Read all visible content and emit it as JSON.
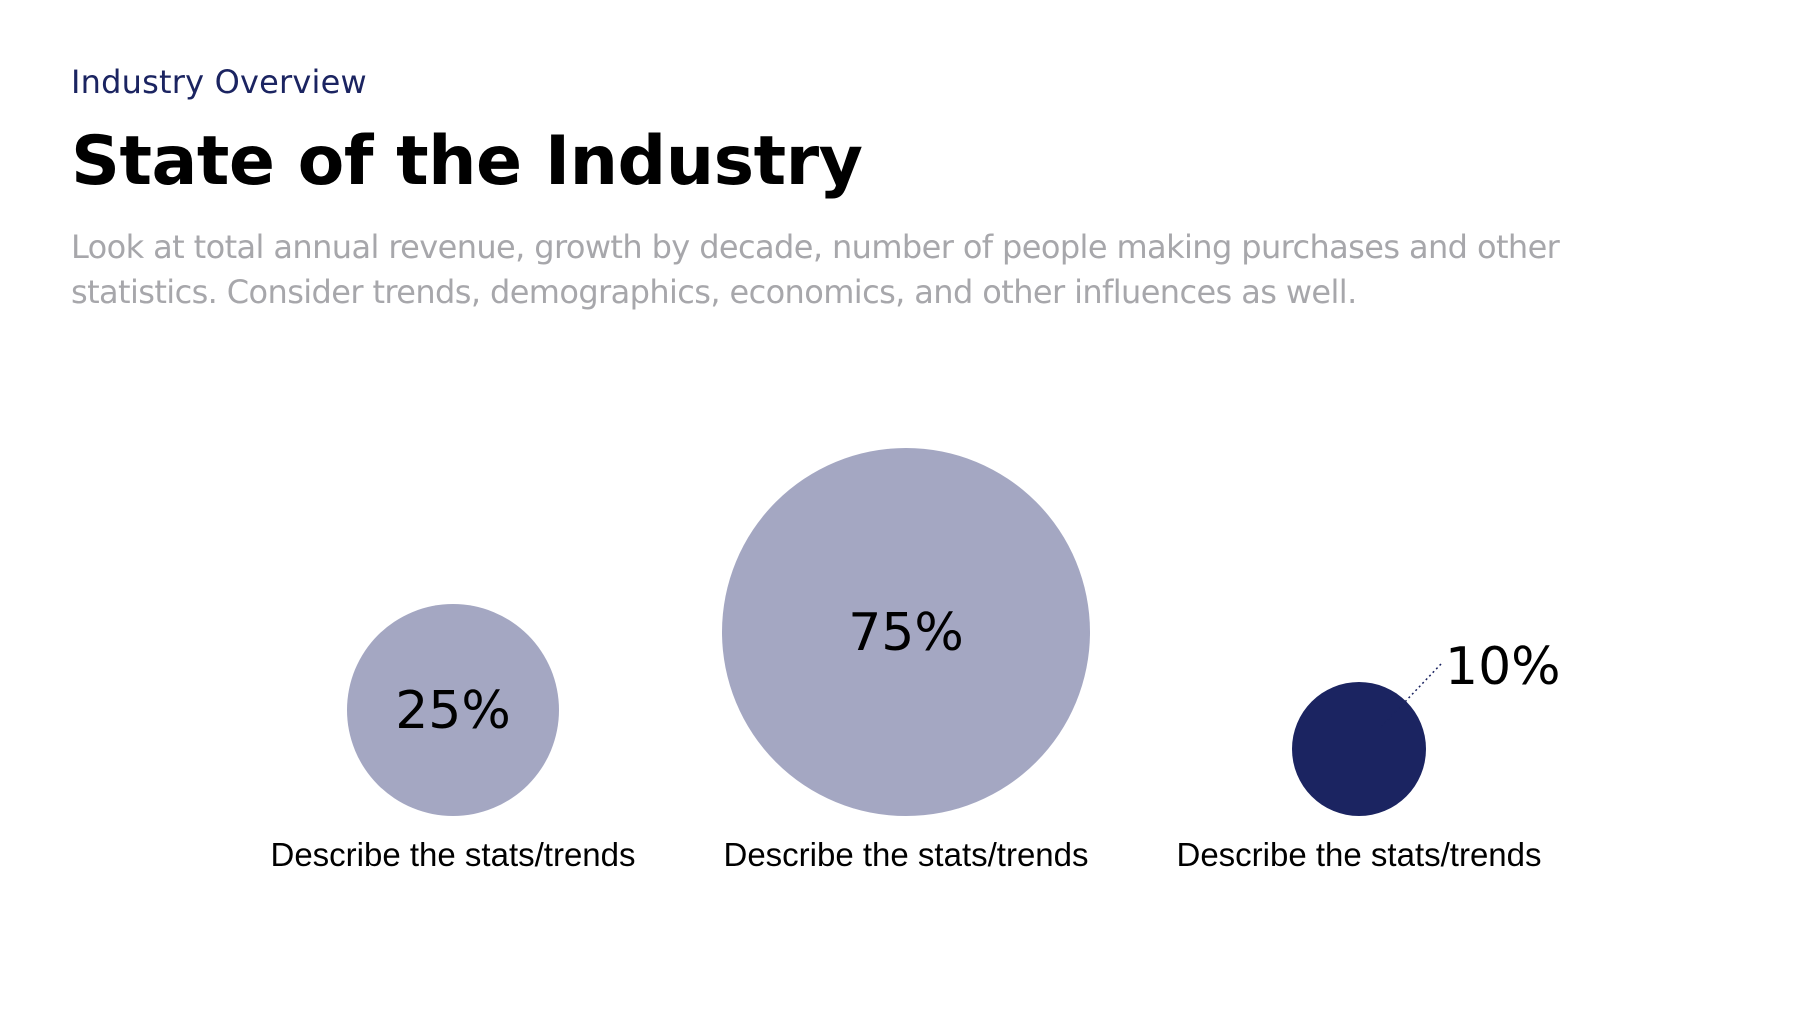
{
  "slide": {
    "eyebrow": "Industry Overview",
    "title": "State of the Industry",
    "subtitle_lines": [
      "Look at total annual revenue, growth by decade, number of people making purchases and other",
      "statistics. Consider trends, demographics, economics, and other influences as well."
    ]
  },
  "colors": {
    "eyebrow": "#1b2461",
    "light_bubble": "#a4a7c2",
    "dark_bubble": "#1b2461",
    "subtitle": "#a7a7ab"
  },
  "chart_data": {
    "type": "bubble",
    "series": [
      {
        "label": "25%",
        "value": 25,
        "caption": "Describe the stats/trends",
        "color": "#a4a7c2",
        "label_position": "inside"
      },
      {
        "label": "75%",
        "value": 75,
        "caption": "Describe the stats/trends",
        "color": "#a4a7c2",
        "label_position": "inside"
      },
      {
        "label": "10%",
        "value": 10,
        "caption": "Describe the stats/trends",
        "color": "#1b2461",
        "label_position": "outside-top-right"
      }
    ]
  }
}
